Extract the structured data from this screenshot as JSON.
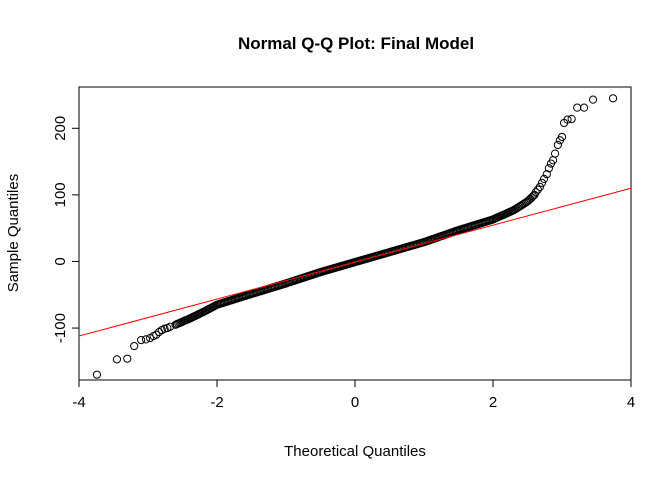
{
  "chart_data": {
    "type": "scatter",
    "title": "Normal Q-Q Plot: Final Model",
    "xlabel": "Theoretical Quantiles",
    "ylabel": "Sample Quantiles",
    "xlim": [
      -4.0,
      4.0
    ],
    "ylim": [
      -178,
      262
    ],
    "x_ticks": [
      -4,
      -2,
      0,
      2,
      4
    ],
    "y_ticks": [
      -100,
      0,
      100,
      200
    ],
    "grid": false,
    "legend": "none",
    "point_color": "#000000",
    "reference_line": {
      "color": "#ff0000",
      "points": [
        [
          -4.0,
          -112
        ],
        [
          4.0,
          110
        ]
      ]
    },
    "body_curve": {
      "description_points": [
        [
          -2.6,
          -95
        ],
        [
          -2.4,
          -86
        ],
        [
          -2.2,
          -76
        ],
        [
          -2.0,
          -65
        ],
        [
          -1.6,
          -52
        ],
        [
          -1.0,
          -33
        ],
        [
          -0.5,
          -16
        ],
        [
          0.0,
          -1
        ],
        [
          0.5,
          14
        ],
        [
          1.0,
          29
        ],
        [
          1.5,
          47
        ],
        [
          2.0,
          63
        ],
        [
          2.3,
          77
        ],
        [
          2.5,
          90
        ],
        [
          2.6,
          100
        ]
      ]
    },
    "tail_points": [
      {
        "x": -3.74,
        "y": -170
      },
      {
        "x": -3.45,
        "y": -147
      },
      {
        "x": -3.3,
        "y": -146
      },
      {
        "x": -3.2,
        "y": -127
      },
      {
        "x": -3.1,
        "y": -118
      },
      {
        "x": -3.03,
        "y": -117
      },
      {
        "x": -2.97,
        "y": -115
      },
      {
        "x": -2.92,
        "y": -112
      },
      {
        "x": -2.88,
        "y": -110
      },
      {
        "x": -2.84,
        "y": -106
      },
      {
        "x": -2.8,
        "y": -103
      },
      {
        "x": -2.76,
        "y": -101
      },
      {
        "x": -2.72,
        "y": -100
      },
      {
        "x": -2.68,
        "y": -98
      },
      {
        "x": 2.62,
        "y": 104
      },
      {
        "x": 2.65,
        "y": 108
      },
      {
        "x": 2.68,
        "y": 112
      },
      {
        "x": 2.71,
        "y": 118
      },
      {
        "x": 2.74,
        "y": 124
      },
      {
        "x": 2.78,
        "y": 131
      },
      {
        "x": 2.81,
        "y": 140
      },
      {
        "x": 2.84,
        "y": 147
      },
      {
        "x": 2.87,
        "y": 152
      },
      {
        "x": 2.9,
        "y": 162
      },
      {
        "x": 2.94,
        "y": 175
      },
      {
        "x": 2.97,
        "y": 182
      },
      {
        "x": 3.0,
        "y": 187
      },
      {
        "x": 3.03,
        "y": 208
      },
      {
        "x": 3.08,
        "y": 213
      },
      {
        "x": 3.14,
        "y": 214
      },
      {
        "x": 3.22,
        "y": 231
      },
      {
        "x": 3.32,
        "y": 231
      },
      {
        "x": 3.45,
        "y": 243
      },
      {
        "x": 3.74,
        "y": 245
      }
    ]
  }
}
